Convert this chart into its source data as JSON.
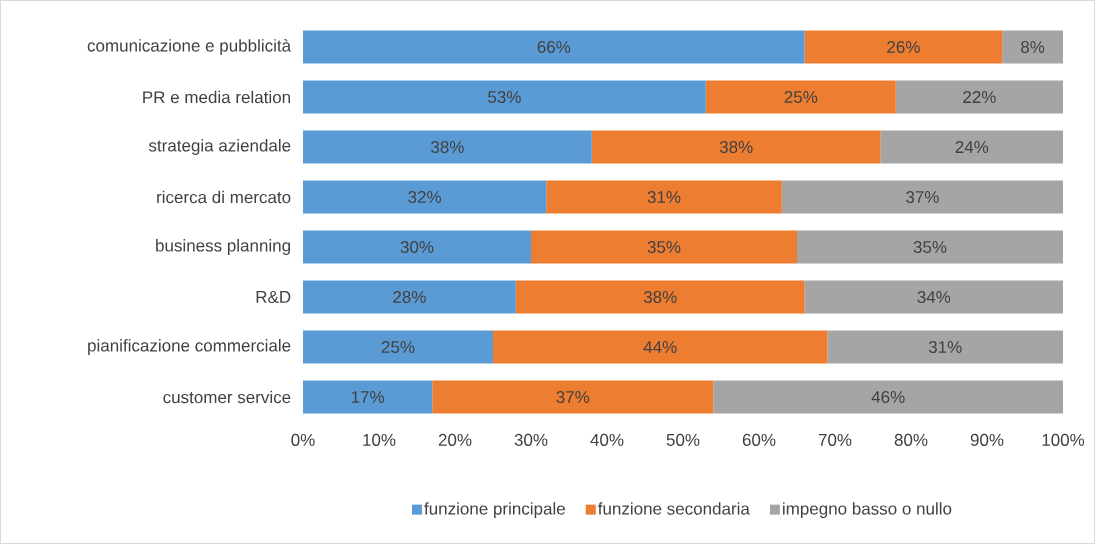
{
  "chart_data": {
    "type": "bar",
    "orientation": "horizontal",
    "stacked": true,
    "categories": [
      "comunicazione e pubblicità",
      "PR e media relation",
      "strategia aziendale",
      "ricerca di mercato",
      "business planning",
      "R&D",
      "pianificazione commerciale",
      "customer service"
    ],
    "series": [
      {
        "name": "funzione principale",
        "color": "#5b9bd5",
        "values": [
          66,
          53,
          38,
          32,
          30,
          28,
          25,
          17
        ],
        "value_labels": [
          "66%",
          "53%",
          "38%",
          "32%",
          "30%",
          "28%",
          "25%",
          "17%"
        ]
      },
      {
        "name": "funzione secondaria",
        "color": "#ed7d31",
        "values": [
          26,
          25,
          38,
          31,
          35,
          38,
          44,
          37
        ],
        "value_labels": [
          "26%",
          "25%",
          "38%",
          "31%",
          "35%",
          "38%",
          "44%",
          "37%"
        ]
      },
      {
        "name": "impegno basso o nullo",
        "color": "#a5a5a5",
        "values": [
          8,
          22,
          24,
          37,
          35,
          34,
          31,
          46
        ],
        "value_labels": [
          "8%",
          "22%",
          "24%",
          "37%",
          "35%",
          "34%",
          "31%",
          "46%"
        ]
      }
    ],
    "xlim": [
      0,
      100
    ],
    "xticks": [
      {
        "value": 0,
        "label": "0%"
      },
      {
        "value": 10,
        "label": "10%"
      },
      {
        "value": 20,
        "label": "20%"
      },
      {
        "value": 30,
        "label": "30%"
      },
      {
        "value": 40,
        "label": "40%"
      },
      {
        "value": 50,
        "label": "50%"
      },
      {
        "value": 60,
        "label": "60%"
      },
      {
        "value": 70,
        "label": "70%"
      },
      {
        "value": 80,
        "label": "80%"
      },
      {
        "value": 90,
        "label": "90%"
      },
      {
        "value": 100,
        "label": "100%"
      }
    ],
    "legend": "bottom"
  }
}
